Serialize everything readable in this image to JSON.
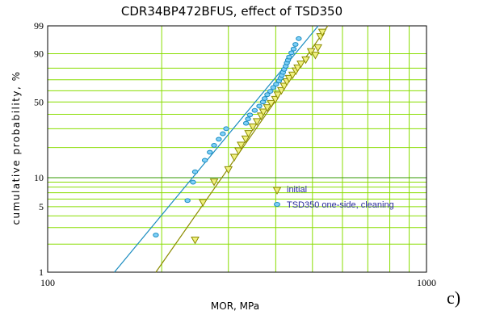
{
  "chart_data": {
    "type": "scatter",
    "title": "CDR34BP472BFUS, effect of TSD350",
    "xlabel": "MOR, MPa",
    "ylabel": "cumulative probability, %",
    "x_scale": "log",
    "y_scale": "weibull-probability",
    "xlim": [
      100,
      1000
    ],
    "ylim": [
      1,
      99
    ],
    "x_tick_labels": [
      "100",
      "1000"
    ],
    "y_tick_labels": [
      "1",
      "5",
      "10",
      "50",
      "90",
      "99"
    ],
    "grid": true,
    "legend_position": "center-right",
    "panel_label": "c)",
    "series": [
      {
        "name": "initial",
        "marker": "triangle-down",
        "color": "#8c8c00",
        "fill": "#f0f080",
        "x": [
          245,
          257,
          275,
          300,
          311,
          319,
          324,
          333,
          339,
          348,
          357,
          366,
          371,
          380,
          389,
          399,
          405,
          414,
          421,
          428,
          434,
          443,
          452,
          457,
          466,
          480,
          496,
          509,
          517,
          525,
          531
        ],
        "y": [
          2.2,
          5.5,
          9.0,
          12.0,
          16.0,
          18.5,
          21.0,
          24.0,
          27.0,
          31.0,
          34.5,
          38.5,
          41.5,
          45.0,
          48.5,
          52.0,
          56.0,
          60.0,
          64.0,
          68.0,
          71.0,
          74.0,
          77.5,
          80.0,
          83.0,
          86.0,
          91.0,
          89.0,
          93.0,
          97.0,
          98.0
        ]
      },
      {
        "name": "TSD350 one-side, cleaning",
        "marker": "ellipse",
        "color": "#1a8cc0",
        "fill": "#80d0f8",
        "x": [
          193,
          234,
          242,
          245,
          260,
          268,
          275,
          283,
          290,
          296,
          334,
          338,
          342,
          352,
          362,
          370,
          374,
          380,
          387,
          394,
          401,
          408,
          412,
          415,
          418,
          421,
          425,
          428,
          431,
          434,
          440,
          446,
          451,
          460
        ],
        "y": [
          2.5,
          5.8,
          9.0,
          11.5,
          15.0,
          18.0,
          21.0,
          24.0,
          27.0,
          30.0,
          33.5,
          36.5,
          39.5,
          43.0,
          46.5,
          50.0,
          53.0,
          56.5,
          59.5,
          63.0,
          66.0,
          69.0,
          71.5,
          74.0,
          76.5,
          79.0,
          81.5,
          84.0,
          86.0,
          88.0,
          90.5,
          92.5,
          94.5,
          96.5
        ]
      }
    ],
    "fit_lines": [
      {
        "series": "initial",
        "color": "#8c8c00",
        "x": [
          193,
          549
        ],
        "y": [
          1,
          99
        ]
      },
      {
        "series": "TSD350 one-side, cleaning",
        "color": "#1a8cc0",
        "x": [
          150,
          518
        ],
        "y": [
          1,
          99
        ]
      }
    ]
  }
}
